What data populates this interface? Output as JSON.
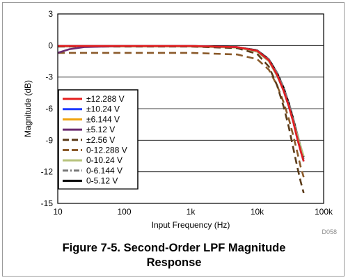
{
  "caption": {
    "line1": "Figure 7-5. Second-Order LPF Magnitude",
    "line2": "Response"
  },
  "figure_id": "D058",
  "chart_data": {
    "type": "line",
    "xlabel": "Input Frequency (Hz)",
    "ylabel": "Magnitude (dB)",
    "x_scale": "log",
    "xlim": [
      10,
      100000
    ],
    "ylim": [
      -15,
      3
    ],
    "x_ticks": [
      10,
      100,
      1000,
      10000,
      100000
    ],
    "x_tick_labels": [
      "10",
      "100",
      "1k",
      "10k",
      "100k"
    ],
    "y_ticks": [
      3,
      0,
      -3,
      -6,
      -9,
      -12,
      -15
    ],
    "y_tick_labels": [
      "3",
      "0",
      "-3",
      "-6",
      "-9",
      "-12",
      "-15"
    ],
    "grid": "horizontal",
    "legend_position": "bottom-left",
    "series": [
      {
        "name": "±12.288 V",
        "color": "#e41e1e",
        "dash": "solid",
        "points": [
          [
            10,
            -0.05
          ],
          [
            100,
            -0.05
          ],
          [
            1000,
            -0.05
          ],
          [
            5000,
            -0.15
          ],
          [
            10000,
            -0.5
          ],
          [
            15000,
            -1.4
          ],
          [
            20000,
            -2.8
          ],
          [
            25000,
            -4.3
          ],
          [
            30000,
            -5.8
          ],
          [
            35000,
            -7.3
          ],
          [
            40000,
            -8.8
          ],
          [
            45000,
            -10.0
          ],
          [
            50000,
            -11.0
          ]
        ]
      },
      {
        "name": "±10.24 V",
        "color": "#1f3bff",
        "dash": "solid",
        "points": [
          [
            10,
            -0.05
          ],
          [
            100,
            -0.05
          ],
          [
            1000,
            -0.05
          ],
          [
            5000,
            -0.15
          ],
          [
            10000,
            -0.5
          ],
          [
            15000,
            -1.4
          ],
          [
            20000,
            -2.8
          ],
          [
            25000,
            -4.3
          ],
          [
            30000,
            -5.8
          ],
          [
            35000,
            -7.3
          ],
          [
            40000,
            -8.8
          ],
          [
            45000,
            -10.0
          ],
          [
            50000,
            -11.0
          ]
        ]
      },
      {
        "name": "±6.144 V",
        "color": "#f0a20b",
        "dash": "solid",
        "points": [
          [
            10,
            -0.05
          ],
          [
            100,
            -0.05
          ],
          [
            1000,
            -0.05
          ],
          [
            5000,
            -0.15
          ],
          [
            10000,
            -0.5
          ],
          [
            15000,
            -1.4
          ],
          [
            20000,
            -2.8
          ],
          [
            25000,
            -4.3
          ],
          [
            30000,
            -5.8
          ],
          [
            35000,
            -7.3
          ],
          [
            40000,
            -8.8
          ],
          [
            45000,
            -10.0
          ],
          [
            50000,
            -11.0
          ]
        ]
      },
      {
        "name": "±5.12 V",
        "color": "#6a2a70",
        "dash": "solid",
        "points": [
          [
            10,
            -0.7
          ],
          [
            15,
            -0.35
          ],
          [
            25,
            -0.15
          ],
          [
            100,
            -0.05
          ],
          [
            1000,
            -0.05
          ],
          [
            5000,
            -0.15
          ],
          [
            10000,
            -0.5
          ],
          [
            15000,
            -1.4
          ],
          [
            20000,
            -2.8
          ],
          [
            25000,
            -4.3
          ],
          [
            30000,
            -5.8
          ],
          [
            35000,
            -7.3
          ],
          [
            40000,
            -8.8
          ],
          [
            45000,
            -10.0
          ],
          [
            50000,
            -11.0
          ]
        ]
      },
      {
        "name": "±2.56 V",
        "color": "#5a3a18",
        "dash": "long",
        "points": [
          [
            10,
            -0.1
          ],
          [
            100,
            -0.1
          ],
          [
            1000,
            -0.1
          ],
          [
            5000,
            -0.25
          ],
          [
            10000,
            -0.8
          ],
          [
            15000,
            -2.0
          ],
          [
            20000,
            -3.8
          ],
          [
            25000,
            -5.8
          ],
          [
            30000,
            -7.8
          ],
          [
            35000,
            -9.8
          ],
          [
            40000,
            -11.5
          ],
          [
            45000,
            -12.9
          ],
          [
            50000,
            -14.0
          ]
        ]
      },
      {
        "name": "0-12.288 V",
        "color": "#8a5a2a",
        "dash": "long",
        "points": [
          [
            10,
            -0.7
          ],
          [
            100,
            -0.7
          ],
          [
            1000,
            -0.7
          ],
          [
            5000,
            -0.85
          ],
          [
            10000,
            -1.3
          ],
          [
            15000,
            -2.3
          ],
          [
            20000,
            -3.8
          ],
          [
            25000,
            -5.4
          ],
          [
            30000,
            -7.0
          ],
          [
            35000,
            -8.6
          ],
          [
            40000,
            -10.1
          ],
          [
            45000,
            -11.5
          ],
          [
            50000,
            -12.5
          ]
        ]
      },
      {
        "name": "0-10.24 V",
        "color": "#b6c27a",
        "dash": "solid",
        "points": [
          [
            10,
            -0.1
          ],
          [
            100,
            -0.1
          ],
          [
            1000,
            -0.1
          ],
          [
            5000,
            -0.2
          ],
          [
            10000,
            -0.6
          ],
          [
            15000,
            -1.5
          ],
          [
            20000,
            -2.9
          ],
          [
            25000,
            -4.3
          ],
          [
            30000,
            -5.8
          ],
          [
            35000,
            -7.2
          ],
          [
            40000,
            -8.5
          ],
          [
            45000,
            -9.6
          ],
          [
            50000,
            -10.5
          ]
        ]
      },
      {
        "name": "0-6.144 V",
        "color": "#7a7a7a",
        "dash": "dashdot",
        "points": [
          [
            10,
            -0.05
          ],
          [
            100,
            -0.05
          ],
          [
            1000,
            -0.05
          ],
          [
            5000,
            -0.15
          ],
          [
            10000,
            -0.45
          ],
          [
            15000,
            -1.3
          ],
          [
            20000,
            -2.6
          ],
          [
            25000,
            -4.0
          ],
          [
            30000,
            -5.5
          ],
          [
            35000,
            -7.0
          ],
          [
            40000,
            -8.4
          ],
          [
            45000,
            -9.7
          ],
          [
            50000,
            -10.8
          ]
        ]
      },
      {
        "name": "0-5.12 V",
        "color": "#000000",
        "dash": "solid",
        "points": [
          [
            10,
            -0.05
          ],
          [
            100,
            -0.05
          ],
          [
            1000,
            -0.05
          ],
          [
            5000,
            -0.15
          ],
          [
            10000,
            -0.45
          ],
          [
            15000,
            -1.3
          ],
          [
            20000,
            -2.6
          ],
          [
            25000,
            -4.0
          ],
          [
            30000,
            -5.5
          ],
          [
            35000,
            -7.0
          ],
          [
            40000,
            -8.4
          ],
          [
            45000,
            -9.6
          ],
          [
            50000,
            -10.6
          ]
        ]
      }
    ]
  }
}
